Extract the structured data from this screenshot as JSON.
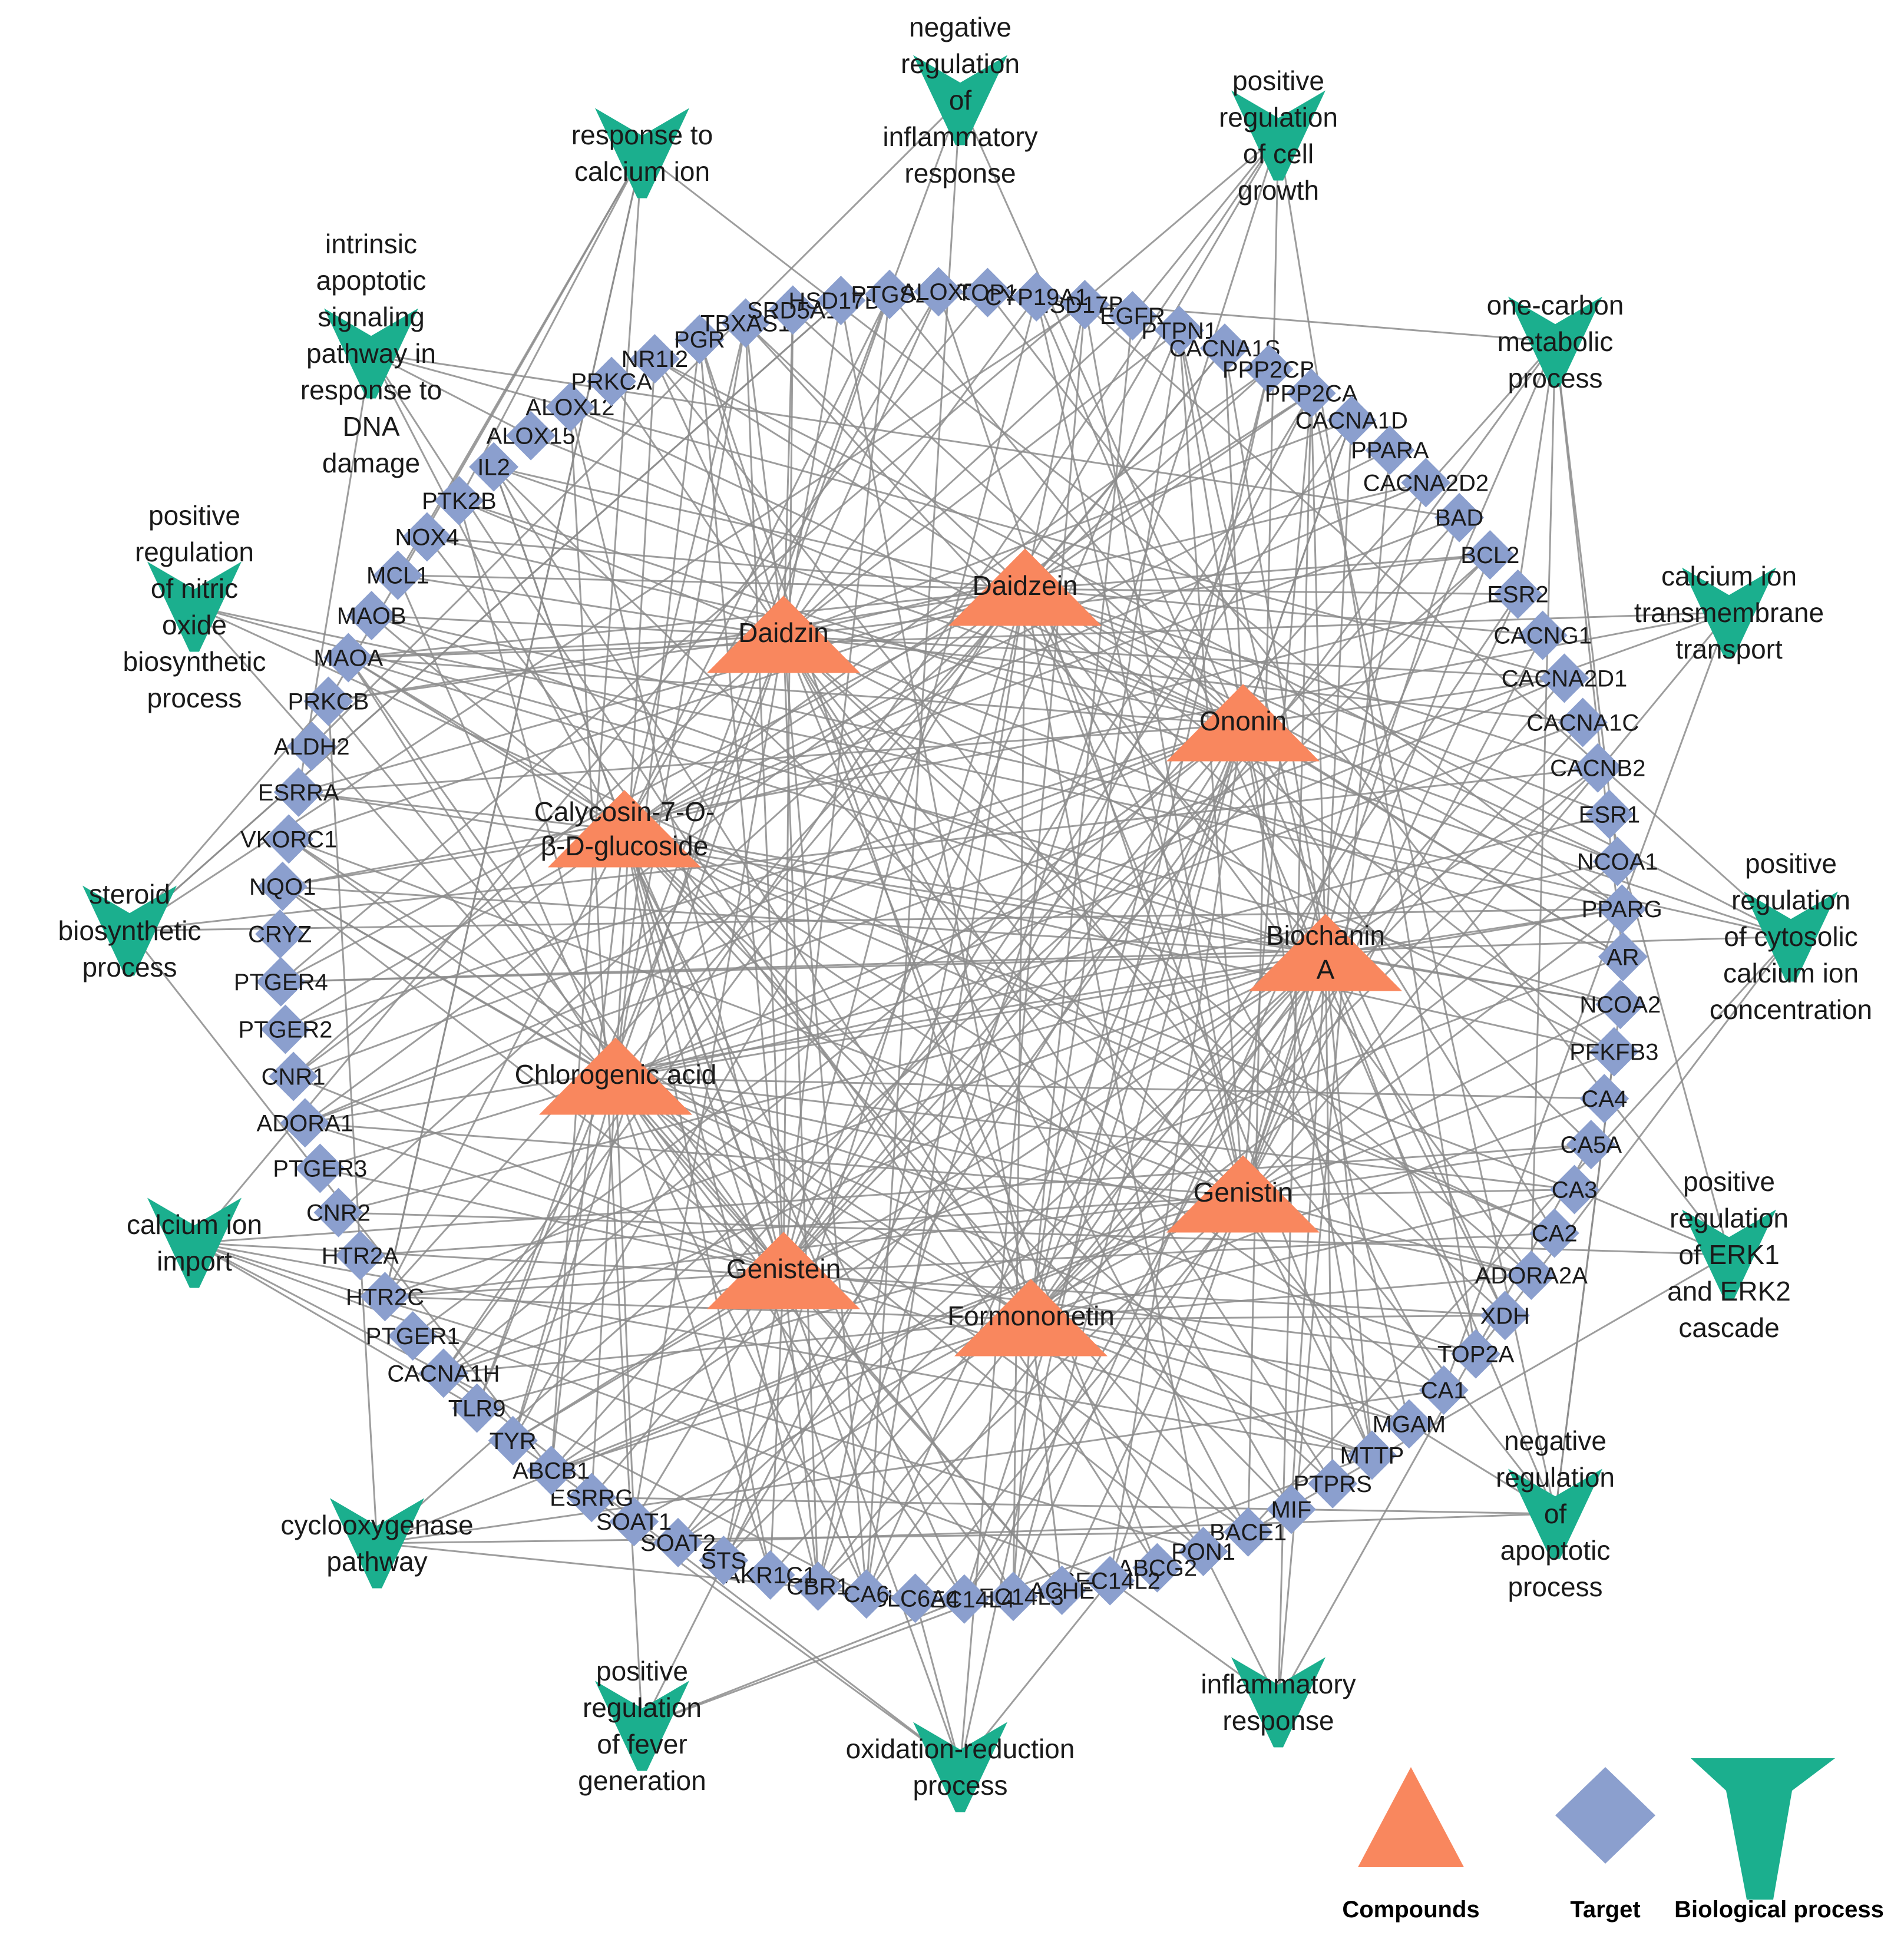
{
  "colors": {
    "compound": "#F9875E",
    "target": "#8B9FCE",
    "process": "#1BAF8E",
    "edge": "#8c8c8c",
    "text": "#1a1a1a"
  },
  "compounds": [
    "Daidzein",
    "Daidzin",
    "Ononin",
    "Calycosin-7-O-β-D-glucoside",
    "Biochanin A",
    "Chlorogenic acid",
    "Genistin",
    "Genistein",
    "Formononetin"
  ],
  "targets": [
    "HSD17B3",
    "EGFR",
    "PTPN1",
    "CACNA1S",
    "PPP2CB",
    "PPP2CA",
    "CACNA1D",
    "PPARA",
    "CACNA2D2",
    "BAD",
    "BCL2",
    "ESR2",
    "CACNG1",
    "CACNA2D1",
    "CACNA1C",
    "CACNB2",
    "ESR1",
    "NCOA1",
    "PPARG",
    "AR",
    "NCOA2",
    "PFKFB3",
    "CA4",
    "CA5A",
    "CA3",
    "CA2",
    "ADORA2A",
    "XDH",
    "TOP2A",
    "CA1",
    "MGAM",
    "MTTP",
    "PTPRS",
    "MIF",
    "BACE1",
    "PON1",
    "ABCG2",
    "SEC14L2",
    "ACHE",
    "SEC14L3",
    "SEC14L4",
    "SLC6A4",
    "CA6",
    "CBR1",
    "AKR1C1",
    "STS",
    "SOAT2",
    "SOAT1",
    "ESRRG",
    "ABCB1",
    "TYR",
    "TLR9",
    "CACNA1H",
    "PTGER1",
    "HTR2C",
    "HTR2A",
    "CNR2",
    "PTGER3",
    "ADORA1",
    "CNR1",
    "PTGER2",
    "PTGER4",
    "CRYZ",
    "NQO1",
    "VKORC1",
    "ESRRA",
    "ALDH2",
    "PRKCB",
    "MAOA",
    "MAOB",
    "MCL1",
    "NOX4",
    "PTK2B",
    "IL2",
    "ALOX15",
    "ALOX12",
    "PRKCA",
    "NR1I2",
    "PGR",
    "TBXAS1",
    "SRD5A1",
    "HSD17B1",
    "PTGS2",
    "ALOX5",
    "TOP1",
    "CYP19A1"
  ],
  "processes": [
    "negative regulation of inflammatory response",
    "positive regulation of cell growth",
    "one-carbon metabolic process",
    "calcium ion transmembrane transport",
    "positive regulation of cytosolic calcium ion concentration",
    "positive regulation of ERK1 and ERK2 cascade",
    "negative regulation of apoptotic process",
    "inflammatory response",
    "oxidation-reduction process",
    "positive regulation of fever generation",
    "cyclooxygenase pathway",
    "calcium ion import",
    "steroid biosynthetic process",
    "positive regulation of nitric oxide biosynthetic process",
    "intrinsic apoptotic signaling pathway in response to DNA damage",
    "response to calcium ion"
  ],
  "legend": {
    "compounds": "Compounds",
    "target": "Target",
    "process": "Biological process"
  }
}
